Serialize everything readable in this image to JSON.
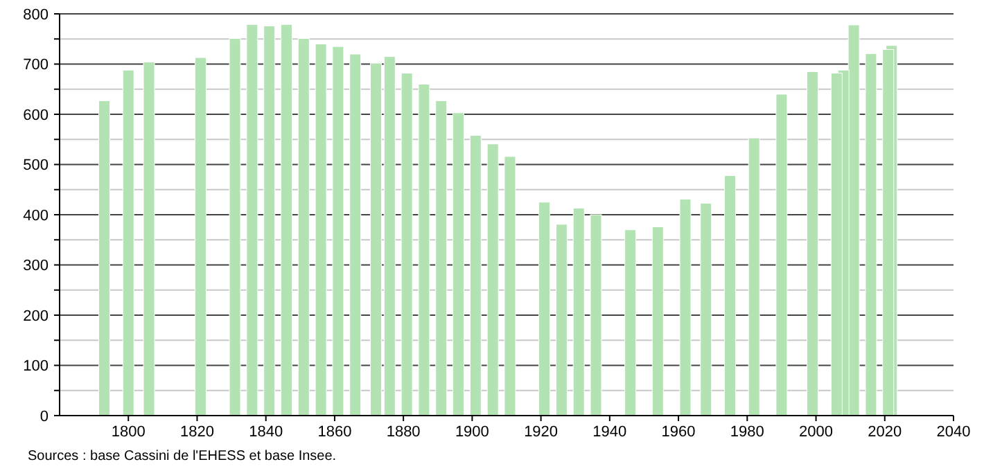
{
  "chart_data": {
    "type": "bar",
    "color": "#b3e3b3",
    "x": [
      1793,
      1800,
      1806,
      1821,
      1831,
      1836,
      1841,
      1846,
      1851,
      1856,
      1861,
      1866,
      1872,
      1876,
      1881,
      1886,
      1891,
      1896,
      1901,
      1906,
      1911,
      1921,
      1926,
      1931,
      1936,
      1946,
      1954,
      1962,
      1968,
      1975,
      1982,
      1990,
      1999,
      2006,
      2008,
      2011,
      2016,
      2021,
      2022
    ],
    "values": [
      627,
      688,
      704,
      713,
      751,
      779,
      776,
      779,
      751,
      740,
      735,
      720,
      702,
      715,
      682,
      660,
      627,
      603,
      558,
      541,
      516,
      425,
      381,
      413,
      400,
      370,
      376,
      431,
      423,
      478,
      553,
      640,
      685,
      682,
      688,
      778,
      721,
      729,
      737
    ],
    "xlim": [
      1780,
      2040
    ],
    "xticks": [
      1800,
      1820,
      1840,
      1860,
      1880,
      1900,
      1920,
      1940,
      1960,
      1980,
      2000,
      2020,
      2040
    ],
    "ylim": [
      0,
      800
    ],
    "yticks": [
      0,
      {
        "value": 50,
        "label": null
      },
      100,
      {
        "value": 150,
        "label": null
      },
      200,
      {
        "value": 250,
        "label": null
      },
      300,
      {
        "value": 350,
        "label": null
      },
      400,
      {
        "value": 450,
        "label": null
      },
      500,
      {
        "value": 550,
        "label": null
      },
      600,
      {
        "value": 650,
        "label": null
      },
      700,
      {
        "value": 750,
        "label": null
      },
      800
    ],
    "grid": true,
    "annotations": [
      "Sources : base Cassini de l'EHESS et base Insee."
    ]
  }
}
